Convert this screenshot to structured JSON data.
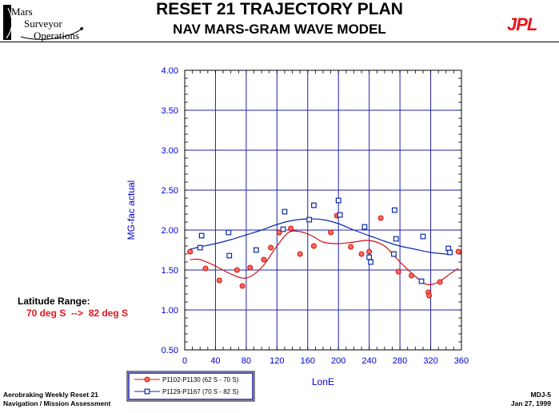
{
  "header": {
    "title": "RESET 21 TRAJECTORY PLAN",
    "subtitle": "NAV MARS-GRAM WAVE MODEL",
    "org_logo_lines": [
      "Mars",
      "Surveyor",
      "Operations"
    ],
    "jpl_logo": "JPL"
  },
  "latitude": {
    "title": "Latitude Range:",
    "value": "70 deg S  -->  82 deg S"
  },
  "footer": {
    "left_line1": "Aerobraking Weekly Reset 21",
    "left_line2": "Navigation / Mission Assessment",
    "right_line1": "MDJ-5",
    "right_line2": "Jan 27, 1999"
  },
  "colors": {
    "axis_text": "#0000cc",
    "grid": "#2020b0",
    "series1": "#cc1111",
    "series2": "#0a2aa8",
    "accent_red": "#e8141c"
  },
  "chart_data": {
    "type": "scatter",
    "xlabel": "LonE",
    "ylabel": "MG-fac actual",
    "xlim": [
      0,
      360
    ],
    "ylim": [
      0.5,
      4.0
    ],
    "xticks": [
      "0",
      "40",
      "80",
      "120",
      "160",
      "200",
      "240",
      "280",
      "320",
      "360"
    ],
    "yticks": [
      "0.50",
      "1.00",
      "1.50",
      "2.00",
      "2.50",
      "3.00",
      "3.50",
      "4.00"
    ],
    "grid": true,
    "legend_position": "bottom-left",
    "series": [
      {
        "name": "P1102-P1130 (62 S - 70 S)",
        "color": "#cc1111",
        "x": [
          7,
          27,
          45,
          68,
          75,
          85,
          103,
          112,
          123,
          138,
          150,
          168,
          190,
          198,
          216,
          230,
          240,
          255,
          278,
          295,
          317,
          318,
          332,
          356
        ],
        "y": [
          1.73,
          1.52,
          1.37,
          1.5,
          1.3,
          1.53,
          1.63,
          1.78,
          1.97,
          2.02,
          1.7,
          1.8,
          1.97,
          2.18,
          1.79,
          1.7,
          1.73,
          2.15,
          1.48,
          1.43,
          1.22,
          1.18,
          1.35,
          1.73
        ],
        "fit_x": [
          7,
          20,
          40,
          60,
          80,
          100,
          120,
          135,
          150,
          165,
          180,
          200,
          220,
          240,
          260,
          280,
          300,
          315,
          330,
          345,
          356
        ],
        "fit_y": [
          1.63,
          1.63,
          1.55,
          1.45,
          1.4,
          1.53,
          1.8,
          1.97,
          1.98,
          1.93,
          1.85,
          1.83,
          1.85,
          1.87,
          1.8,
          1.6,
          1.42,
          1.32,
          1.35,
          1.45,
          1.52
        ]
      },
      {
        "name": "P1129-P1167 (70 S - 82 S)",
        "color": "#0a2aa8",
        "x": [
          20,
          22,
          57,
          58,
          93,
          128,
          130,
          162,
          168,
          200,
          202,
          234,
          240,
          242,
          272,
          273,
          275,
          308,
          310,
          343,
          345
        ],
        "y": [
          1.78,
          1.93,
          1.97,
          1.68,
          1.75,
          2.01,
          2.23,
          2.13,
          2.31,
          2.37,
          2.19,
          2.04,
          1.66,
          1.6,
          1.7,
          2.25,
          1.89,
          1.36,
          1.92,
          1.77,
          1.72
        ],
        "fit_x": [
          7,
          20,
          40,
          60,
          80,
          100,
          120,
          140,
          160,
          180,
          200,
          220,
          240,
          260,
          280,
          300,
          320,
          340,
          345
        ],
        "fit_y": [
          1.76,
          1.79,
          1.83,
          1.88,
          1.94,
          2.0,
          2.07,
          2.12,
          2.14,
          2.13,
          2.08,
          2.0,
          1.93,
          1.86,
          1.8,
          1.76,
          1.72,
          1.7,
          1.7
        ]
      }
    ]
  }
}
